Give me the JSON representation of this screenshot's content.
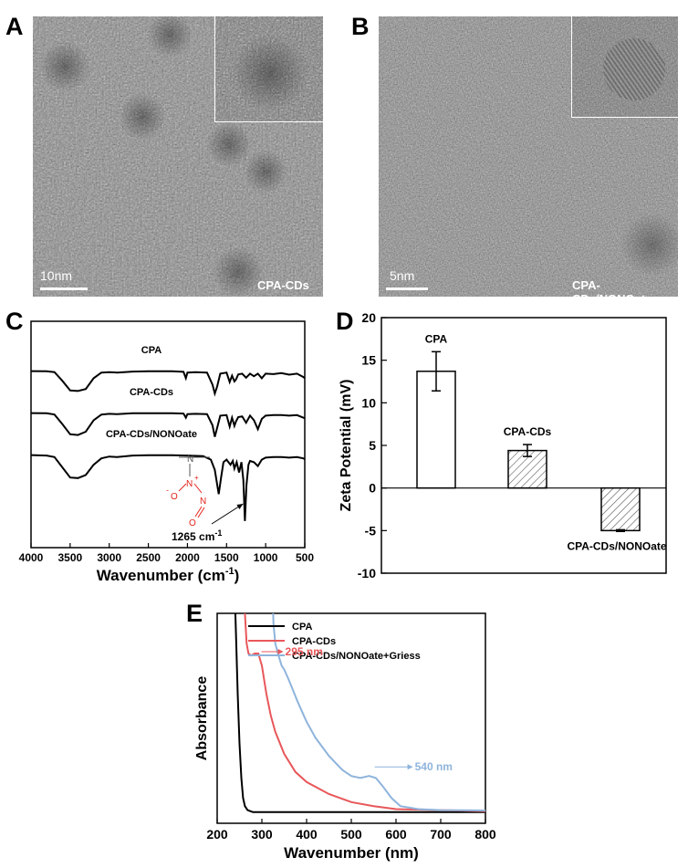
{
  "panels": {
    "A": {
      "letter": "A",
      "scalebar_label": "10nm",
      "sample_label": "CPA-CDs"
    },
    "B": {
      "letter": "B",
      "scalebar_label": "5nm",
      "sample_label": "CPA-CDs/NONOate"
    },
    "C": {
      "letter": "C"
    },
    "D": {
      "letter": "D"
    },
    "E": {
      "letter": "E"
    }
  },
  "chart_data": [
    {
      "panel": "C",
      "type": "line",
      "xlabel": "Wavenumber (cm",
      "xlabel_superscript": "-1",
      "xlabel_close": ")",
      "xlim": [
        4000,
        500
      ],
      "xticks": [
        4000,
        3500,
        3000,
        2500,
        2000,
        1500,
        1000,
        500
      ],
      "ylabel": "",
      "series": [
        {
          "name": "CPA",
          "offset": 0,
          "points": [
            [
              4000,
              0.02
            ],
            [
              3800,
              0.03
            ],
            [
              3700,
              0.06
            ],
            [
              3600,
              0.4
            ],
            [
              3500,
              0.78
            ],
            [
              3400,
              0.8
            ],
            [
              3300,
              0.72
            ],
            [
              3200,
              0.3
            ],
            [
              3100,
              0.08
            ],
            [
              3000,
              0.06
            ],
            [
              2900,
              0.08
            ],
            [
              2700,
              0.04
            ],
            [
              2500,
              0.03
            ],
            [
              2200,
              0.03
            ],
            [
              2050,
              0.05
            ],
            [
              2020,
              0.3
            ],
            [
              2000,
              0.08
            ],
            [
              1900,
              0.06
            ],
            [
              1750,
              0.08
            ],
            [
              1680,
              0.55
            ],
            [
              1650,
              0.9
            ],
            [
              1620,
              0.62
            ],
            [
              1580,
              0.12
            ],
            [
              1500,
              0.08
            ],
            [
              1460,
              0.45
            ],
            [
              1430,
              0.2
            ],
            [
              1400,
              0.42
            ],
            [
              1380,
              0.35
            ],
            [
              1350,
              0.15
            ],
            [
              1300,
              0.12
            ],
            [
              1250,
              0.28
            ],
            [
              1200,
              0.12
            ],
            [
              1150,
              0.22
            ],
            [
              1100,
              0.12
            ],
            [
              1050,
              0.3
            ],
            [
              1000,
              0.12
            ],
            [
              900,
              0.14
            ],
            [
              800,
              0.1
            ],
            [
              700,
              0.16
            ],
            [
              600,
              0.12
            ],
            [
              520,
              0.25
            ],
            [
              500,
              0.3
            ]
          ]
        },
        {
          "name": "CPA-CDs",
          "offset": 1,
          "points": [
            [
              4000,
              0.02
            ],
            [
              3800,
              0.03
            ],
            [
              3700,
              0.08
            ],
            [
              3600,
              0.45
            ],
            [
              3500,
              0.85
            ],
            [
              3400,
              0.88
            ],
            [
              3300,
              0.75
            ],
            [
              3200,
              0.3
            ],
            [
              3100,
              0.08
            ],
            [
              3000,
              0.05
            ],
            [
              2900,
              0.06
            ],
            [
              2700,
              0.03
            ],
            [
              2500,
              0.03
            ],
            [
              2200,
              0.03
            ],
            [
              2050,
              0.04
            ],
            [
              2020,
              0.2
            ],
            [
              2000,
              0.06
            ],
            [
              1900,
              0.05
            ],
            [
              1750,
              0.06
            ],
            [
              1680,
              0.5
            ],
            [
              1650,
              0.95
            ],
            [
              1620,
              0.6
            ],
            [
              1580,
              0.12
            ],
            [
              1500,
              0.1
            ],
            [
              1460,
              0.55
            ],
            [
              1430,
              0.2
            ],
            [
              1400,
              0.52
            ],
            [
              1380,
              0.35
            ],
            [
              1350,
              0.18
            ],
            [
              1300,
              0.15
            ],
            [
              1250,
              0.4
            ],
            [
              1200,
              0.12
            ],
            [
              1150,
              0.3
            ],
            [
              1100,
              0.65
            ],
            [
              1050,
              0.25
            ],
            [
              1000,
              0.12
            ],
            [
              900,
              0.1
            ],
            [
              800,
              0.1
            ],
            [
              700,
              0.12
            ],
            [
              600,
              0.1
            ],
            [
              520,
              0.2
            ],
            [
              500,
              0.22
            ]
          ]
        },
        {
          "name": "CPA-CDs/NONOate",
          "offset": 2,
          "points": [
            [
              4000,
              0.02
            ],
            [
              3800,
              0.04
            ],
            [
              3700,
              0.1
            ],
            [
              3600,
              0.5
            ],
            [
              3500,
              0.9
            ],
            [
              3400,
              0.92
            ],
            [
              3300,
              0.8
            ],
            [
              3200,
              0.4
            ],
            [
              3100,
              0.15
            ],
            [
              3000,
              0.08
            ],
            [
              2900,
              0.1
            ],
            [
              2700,
              0.04
            ],
            [
              2500,
              0.03
            ],
            [
              2200,
              0.03
            ],
            [
              2000,
              0.04
            ],
            [
              1800,
              0.06
            ],
            [
              1700,
              0.2
            ],
            [
              1650,
              0.6
            ],
            [
              1600,
              1.55
            ],
            [
              1570,
              0.9
            ],
            [
              1540,
              0.3
            ],
            [
              1500,
              0.2
            ],
            [
              1450,
              0.4
            ],
            [
              1420,
              0.25
            ],
            [
              1400,
              0.55
            ],
            [
              1370,
              0.3
            ],
            [
              1340,
              0.7
            ],
            [
              1310,
              0.3
            ],
            [
              1285,
              1.0
            ],
            [
              1265,
              2.6
            ],
            [
              1245,
              1.2
            ],
            [
              1220,
              0.4
            ],
            [
              1200,
              0.25
            ],
            [
              1150,
              0.3
            ],
            [
              1100,
              0.45
            ],
            [
              1050,
              0.2
            ],
            [
              1000,
              0.12
            ],
            [
              900,
              0.1
            ],
            [
              800,
              0.1
            ],
            [
              700,
              0.12
            ],
            [
              600,
              0.1
            ],
            [
              520,
              0.15
            ],
            [
              500,
              0.18
            ]
          ]
        }
      ],
      "annotations": [
        {
          "text": "1265 cm",
          "superscript": "-1",
          "x": 1265
        }
      ],
      "structure_labels": {
        "nitrogen": "N",
        "oxygen": "O",
        "charge_plus": "+",
        "charge_minus": "-"
      }
    },
    {
      "panel": "D",
      "type": "bar",
      "categories": [
        "CPA",
        "CPA-CDs",
        "CPA-CDs/NONOate"
      ],
      "values": [
        13.7,
        4.4,
        -5.0
      ],
      "errors": [
        2.3,
        0.7,
        0.1
      ],
      "ylabel": "Zeta Potential (mV)",
      "xlabel": "",
      "ylim": [
        -10,
        20
      ],
      "yticks": [
        -10,
        -5,
        0,
        5,
        10,
        15,
        20
      ],
      "colors": {
        "CPA": "#ffffff",
        "CPA-CDs": "hatched",
        "CPA-CDs/NONOate": "hatched"
      }
    },
    {
      "panel": "E",
      "type": "line",
      "xlabel": "Wavenumber (nm)",
      "ylabel": "Absorbance",
      "xlim": [
        200,
        800
      ],
      "xticks": [
        200,
        300,
        400,
        500,
        600,
        700,
        800
      ],
      "legend_position": "top",
      "series": [
        {
          "name": "CPA",
          "color": "#000000",
          "points": [
            [
              238,
              1.2
            ],
            [
              242,
              0.9
            ],
            [
              246,
              0.6
            ],
            [
              250,
              0.35
            ],
            [
              254,
              0.18
            ],
            [
              258,
              0.08
            ],
            [
              262,
              0.04
            ],
            [
              268,
              0.02
            ],
            [
              280,
              0.01
            ],
            [
              400,
              0.01
            ],
            [
              600,
              0.01
            ],
            [
              800,
              0.01
            ]
          ]
        },
        {
          "name": "CPA-CDs",
          "color": "#e8575a",
          "points": [
            [
              258,
              1.2
            ],
            [
              262,
              1.0
            ],
            [
              266,
              0.85
            ],
            [
              270,
              0.8
            ],
            [
              276,
              0.79
            ],
            [
              284,
              0.8
            ],
            [
              292,
              0.8
            ],
            [
              300,
              0.74
            ],
            [
              310,
              0.6
            ],
            [
              320,
              0.49
            ],
            [
              330,
              0.41
            ],
            [
              350,
              0.3
            ],
            [
              375,
              0.21
            ],
            [
              400,
              0.16
            ],
            [
              450,
              0.1
            ],
            [
              500,
              0.06
            ],
            [
              550,
              0.04
            ],
            [
              600,
              0.025
            ],
            [
              700,
              0.02
            ],
            [
              800,
              0.015
            ]
          ]
        },
        {
          "name": "CPA-CDs/NONOate+Griess",
          "color": "#8fb4dc",
          "points": [
            [
              322,
              1.2
            ],
            [
              326,
              0.95
            ],
            [
              330,
              0.85
            ],
            [
              336,
              0.8
            ],
            [
              344,
              0.74
            ],
            [
              350,
              0.72
            ],
            [
              360,
              0.67
            ],
            [
              380,
              0.56
            ],
            [
              400,
              0.46
            ],
            [
              420,
              0.38
            ],
            [
              450,
              0.29
            ],
            [
              480,
              0.22
            ],
            [
              500,
              0.19
            ],
            [
              520,
              0.18
            ],
            [
              540,
              0.19
            ],
            [
              555,
              0.18
            ],
            [
              570,
              0.14
            ],
            [
              590,
              0.08
            ],
            [
              610,
              0.04
            ],
            [
              650,
              0.025
            ],
            [
              700,
              0.02
            ],
            [
              800,
              0.018
            ]
          ]
        }
      ],
      "annotations": [
        {
          "text": "295 nm",
          "x": 295,
          "color": "#e8575a"
        },
        {
          "text": "540 nm",
          "x": 540,
          "color": "#8fb4dc"
        }
      ]
    }
  ]
}
